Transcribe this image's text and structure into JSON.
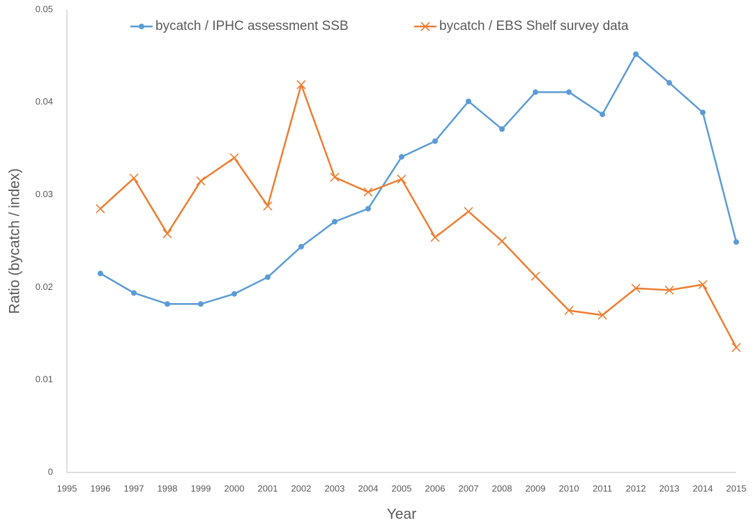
{
  "chart_data": {
    "type": "line",
    "x_label": "Year",
    "y_label": "Ratio (bycatch / index)",
    "x": [
      1996,
      1997,
      1998,
      1999,
      2000,
      2001,
      2002,
      2003,
      2004,
      2005,
      2006,
      2007,
      2008,
      2009,
      2010,
      2011,
      2012,
      2013,
      2014,
      2015
    ],
    "series": [
      {
        "name": "bycatch / IPHC assessment SSB",
        "color": "#5b9bd5",
        "marker": "circle",
        "values": [
          0.0215,
          0.0194,
          0.0182,
          0.0182,
          0.0193,
          0.0211,
          0.0244,
          0.0271,
          0.0285,
          0.0341,
          0.0358,
          0.0401,
          0.0371,
          0.0411,
          0.0411,
          0.0387,
          0.0452,
          0.0421,
          0.0389,
          0.0249
        ]
      },
      {
        "name": "bycatch / EBS Shelf survey data",
        "color": "#ed7d31",
        "marker": "x",
        "values": [
          0.0285,
          0.0318,
          0.0258,
          0.0315,
          0.034,
          0.0288,
          0.0419,
          0.0319,
          0.0303,
          0.0317,
          0.0254,
          0.0282,
          0.025,
          0.0212,
          0.0175,
          0.017,
          0.0199,
          0.0197,
          0.0203,
          0.0135
        ]
      }
    ],
    "xlim": [
      1995,
      2015
    ],
    "xticks": [
      1995,
      1996,
      1997,
      1998,
      1999,
      2000,
      2001,
      2002,
      2003,
      2004,
      2005,
      2006,
      2007,
      2008,
      2009,
      2010,
      2011,
      2012,
      2013,
      2014,
      2015
    ],
    "ylim": [
      0,
      0.05
    ],
    "yticks": [
      0,
      0.01,
      0.02,
      0.03,
      0.04,
      0.05
    ],
    "grid": false,
    "legend": "top"
  }
}
